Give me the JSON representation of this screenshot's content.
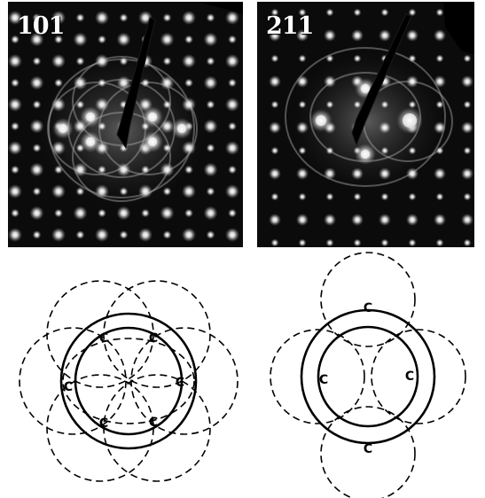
{
  "panels": [
    {
      "label": "101"
    },
    {
      "label": "211"
    }
  ],
  "schematics": [
    {
      "markers": [
        "C",
        "C",
        "C",
        "C",
        "C",
        "C"
      ]
    },
    {
      "markers": [
        "C",
        "C",
        "C",
        "C"
      ]
    }
  ],
  "colors": {
    "pattern_bg": "#0b0b0b",
    "spot": "#ffffff",
    "line": "#000000"
  }
}
